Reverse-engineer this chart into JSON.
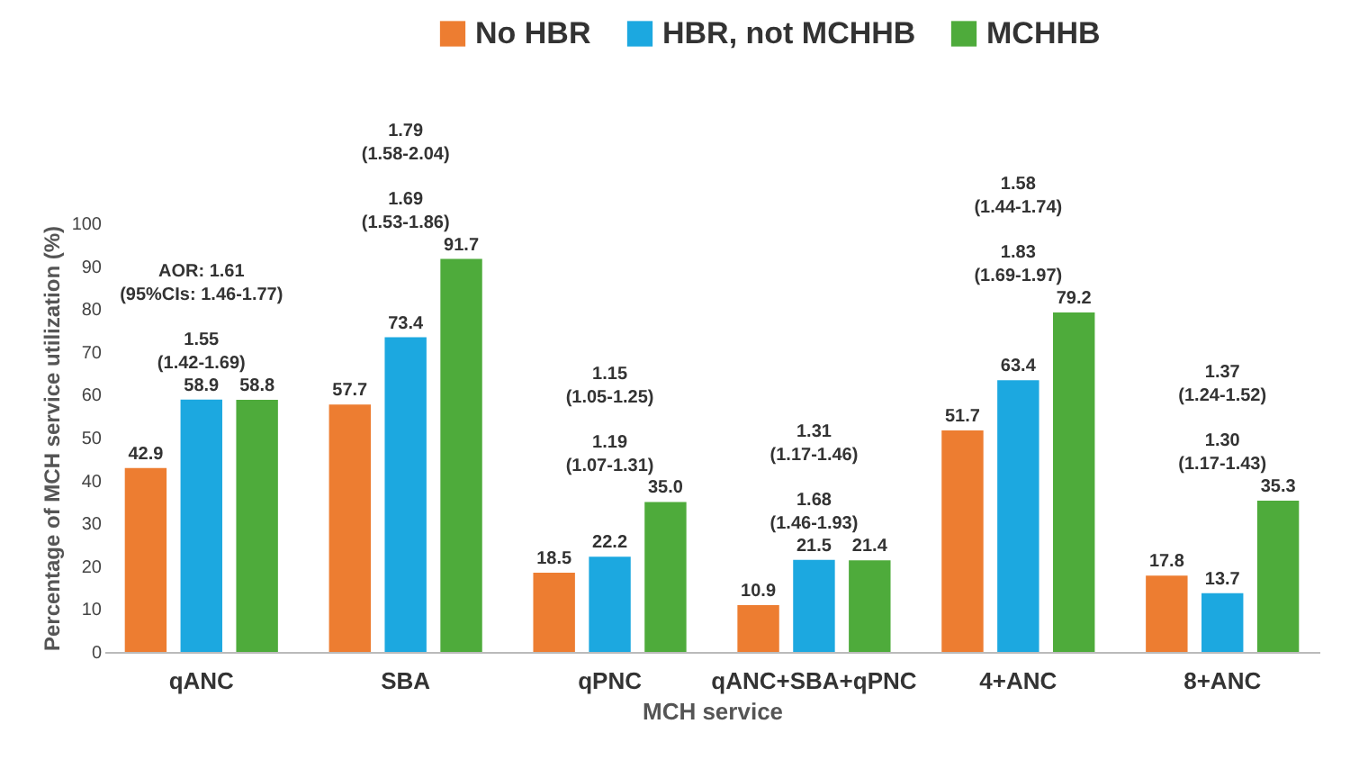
{
  "chart_data": {
    "type": "bar",
    "xlabel": "MCH service",
    "ylabel": "Percentage of MCH service utilization (%)",
    "categories": [
      "qANC",
      "SBA",
      "qPNC",
      "qANC+SBA+qPNC",
      "4+ANC",
      "8+ANC"
    ],
    "series": [
      {
        "name": "No HBR",
        "color": "#ed7d31",
        "values": [
          42.9,
          57.7,
          18.5,
          10.9,
          51.7,
          17.8
        ],
        "value_labels": [
          "42.9",
          "57.7",
          "18.5",
          "10.9",
          "51.7",
          "17.8"
        ]
      },
      {
        "name": "HBR, not MCHHB",
        "color": "#1ca8e0",
        "values": [
          58.9,
          73.4,
          22.2,
          21.5,
          63.4,
          13.7
        ],
        "value_labels": [
          "58.9",
          "73.4",
          "22.2",
          "21.5",
          "63.4",
          "13.7"
        ]
      },
      {
        "name": "MCHHB",
        "color": "#4eab3b",
        "values": [
          58.8,
          91.7,
          35.0,
          21.4,
          79.2,
          35.3
        ],
        "value_labels": [
          "58.8",
          "91.7",
          "35.0",
          "21.4",
          "79.2",
          "35.3"
        ]
      }
    ],
    "ylim": [
      0,
      100
    ],
    "yticks": [
      0,
      10,
      20,
      30,
      40,
      50,
      60,
      70,
      80,
      90,
      100
    ],
    "grid": false,
    "legend": "top",
    "annotations": [
      "AOR: 1.61\n(95%CIs: 1.46-1.77)",
      "1.55\n(1.42-1.69)",
      "1.79\n(1.58-2.04)",
      "1.69\n(1.53-1.86)",
      "1.15\n(1.05-1.25)",
      "1.19\n(1.07-1.31)",
      "1.31\n(1.17-1.46)",
      "1.68\n(1.46-1.93)",
      "1.58\n(1.44-1.74)",
      "1.83\n(1.69-1.97)",
      "1.37\n(1.24-1.52)",
      "1.30\n(1.17-1.43)"
    ]
  }
}
